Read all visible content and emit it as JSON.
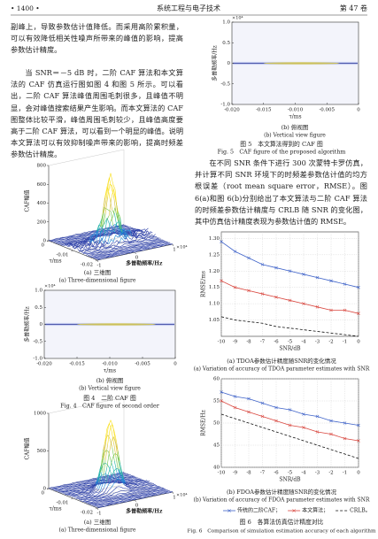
{
  "header": {
    "page": "• 1400 •",
    "journal": "系统工程与电子技术",
    "volume": "第 47 卷"
  },
  "left_text": [
    "副峰上，导致参数估计值降低。而采用高阶累积量，可以有效降低相关性噪声所带来的峰值的影响，提高参数估计精度。",
    "当 SNR＝－5 dB 时，二阶 CAF 算法和本文算法的 CAF 仿真运行图如图 4 和图 5 所示。可以看出，二阶 CAF 算法峰值周围毛刺很多，且峰值不明显，会对峰值搜索结果产生影响。而本文算法的 CAF 图整体比较平滑，峰值周围毛刺较少，且峰值高度要高于二阶 CAF 算法，可以看到一个明显的峰值。说明本文算法可以有效抑制噪声带来的影响，提高时频差参数估计精度。"
  ],
  "right_text": [
    "在不同 SNR 条件下进行 300 次蒙特卡罗仿真，并计算不同 SNR 环境下的时频差参数估计值的均方根误差（root mean square error，RMSE）。图 6(a)和图 6(b)分别给出了本文算法与二阶 CAF 算法的时频差参数估计精度与 CRLB 随 SNR 的变化图，其中仿真估计精度表现为参数估计值的 RMSE。"
  ],
  "fig4": {
    "panel_a": {
      "type": "surface3d",
      "zlabel": "CAF幅值",
      "xlabel": "τ/ms",
      "ylabel": "多普勒频率/Hz",
      "y_multiplier": "×10⁴",
      "zlim": [
        0,
        800
      ],
      "zticks": [
        0,
        200,
        400,
        600,
        800
      ],
      "xlim": [
        -0.02,
        0
      ],
      "xticks": [
        0,
        -0.01,
        -0.02
      ],
      "ylim": [
        -1,
        1
      ],
      "yticks": [
        -1,
        0,
        1
      ],
      "caption_cn": "(a) 三维图",
      "caption_en": "(a) Three-dimensional figure"
    },
    "panel_b": {
      "type": "heatmap",
      "ylabel": "多普勒频率/Hz",
      "xlabel": "τ/ms",
      "y_multiplier": "×10⁴",
      "xlim": [
        -0.02,
        0
      ],
      "xticks": [
        {
          "value": -0.02,
          "label": "-0.020"
        },
        {
          "value": -0.015,
          "label": "-0.015"
        },
        {
          "value": -0.01,
          "label": "-0.010"
        },
        {
          "value": -0.005,
          "label": "-0.005"
        },
        0
      ],
      "ylim": [
        -1,
        1
      ],
      "yticks": [
        {
          "value": 1,
          "label": "1.0"
        },
        0.5,
        0,
        -0.5,
        {
          "value": -1,
          "label": "-1.0"
        }
      ],
      "caption_cn": "(b) 俯视图",
      "caption_en": "(b) Vertical view figure"
    },
    "caption_cn": "图 4　二阶 CAF 图",
    "caption_en": "Fig. 4　CAF figure of second order"
  },
  "fig5": {
    "panel_a": {
      "type": "surface3d",
      "zlabel": "CAF幅值",
      "xlabel": "τ/ms",
      "ylabel": "多普勒频率/Hz",
      "y_multiplier": "×10⁴",
      "zlim": [
        0,
        1000
      ],
      "zticks": [
        0,
        500,
        1000
      ],
      "xlim": [
        -0.02,
        0
      ],
      "xticks": [
        0,
        -0.01,
        -0.02
      ],
      "ylim": [
        -1,
        1
      ],
      "yticks": [
        -1,
        0,
        1
      ],
      "caption_cn": "(a) 三维图",
      "caption_en": "(a) Three-dimensional figure"
    },
    "panel_b": {
      "type": "heatmap",
      "ylabel": "多普勒频率/Hz",
      "xlabel": "τ/ms",
      "y_multiplier": "×10⁴",
      "xlim": [
        -0.02,
        0
      ],
      "xticks": [
        {
          "value": -0.02,
          "label": "-0.020"
        },
        {
          "value": -0.015,
          "label": "-0.015"
        },
        {
          "value": -0.01,
          "label": "-0.010"
        },
        {
          "value": -0.005,
          "label": "-0.005"
        },
        0
      ],
      "ylim": [
        -1,
        1
      ],
      "yticks": [
        {
          "value": 1,
          "label": "1.0"
        },
        0.5,
        0,
        -0.5,
        {
          "value": -1,
          "label": "-1.0"
        }
      ],
      "caption_cn": "(b) 俯视图",
      "caption_en": "(b) Vertical view figure"
    },
    "caption_cn": "图 5　本文算法得到的 CAF 图",
    "caption_en": "Fig. 5　CAF figure of the proposed algorithm"
  },
  "fig6": {
    "series_styles": [
      {
        "name": "传统的二阶CAF；",
        "color": "#3f63c9",
        "marker": "x",
        "line": "solid"
      },
      {
        "name": "本文算法；",
        "color": "#d9473f",
        "marker": "x",
        "line": "solid"
      },
      {
        "name": "CRLB。",
        "color": "#111111",
        "marker": "none",
        "line": "dashed"
      }
    ],
    "panel_a": {
      "type": "line",
      "ylabel": "RMSE/ms",
      "xlabel": "SNR/dB",
      "x": [
        -10,
        -9,
        -8,
        -7,
        -6,
        -5,
        -4,
        -3,
        -2,
        -1,
        0
      ],
      "xlim": [
        -10,
        0
      ],
      "xticks": [
        -10,
        -9,
        -8,
        -7,
        -6,
        -5,
        -4,
        -3,
        -2,
        -1,
        0
      ],
      "ylim": [
        1.0,
        1.32
      ],
      "yticks": [
        {
          "value": 1.05,
          "label": "1.05"
        },
        {
          "value": 1.1,
          "label": "1.10"
        },
        {
          "value": 1.15,
          "label": "1.15"
        },
        {
          "value": 1.2,
          "label": "1.20"
        },
        {
          "value": 1.25,
          "label": "1.25"
        },
        {
          "value": 1.3,
          "label": "1.30"
        }
      ],
      "grid": true,
      "series": [
        {
          "values": [
            1.29,
            1.26,
            1.24,
            1.22,
            1.21,
            1.2,
            1.19,
            1.18,
            1.17,
            1.16,
            1.15
          ]
        },
        {
          "values": [
            1.17,
            1.15,
            1.14,
            1.13,
            1.12,
            1.11,
            1.1,
            1.09,
            1.08,
            1.08,
            1.07
          ]
        },
        {
          "values": [
            1.06,
            1.05,
            1.045,
            1.04,
            1.03,
            1.025,
            1.02,
            1.015,
            1.01,
            1.005,
            1.0
          ]
        }
      ],
      "caption_cn": "(a) TDOA参数估计精度随SNR的变化情况",
      "caption_en": "(a) Variation of accuracy of TDOA parameter estimates with SNR"
    },
    "panel_b": {
      "type": "line",
      "ylabel": "RMSE/Hz",
      "xlabel": "SNR/dB",
      "x": [
        -10,
        -9,
        -8,
        -7,
        -6,
        -5,
        -4,
        -3,
        -2,
        -1,
        0
      ],
      "xlim": [
        -10,
        0
      ],
      "xticks": [
        -10,
        -9,
        -8,
        -7,
        -6,
        -5,
        -4,
        -3,
        -2,
        -1,
        0
      ],
      "ylim": [
        40,
        60
      ],
      "yticks": [
        40,
        45,
        50,
        55,
        60
      ],
      "grid": true,
      "series": [
        {
          "values": [
            57,
            56,
            55.5,
            54.5,
            53.5,
            53,
            52,
            51.5,
            50.5,
            50,
            49.5
          ]
        },
        {
          "values": [
            55,
            53.5,
            52.5,
            51.5,
            50.5,
            49.5,
            49,
            48,
            47.5,
            46.5,
            46
          ]
        },
        {
          "values": [
            52,
            51,
            50,
            49,
            48,
            47,
            46,
            45,
            44,
            43,
            42
          ]
        }
      ],
      "caption_cn": "(b) FDOA参数估计精度随SNR的变化情况",
      "caption_en": "(b) Variation of accuracy of FDOA parameter estimates with SNR"
    },
    "caption_cn": "图 6　各算法仿真估计精度对比",
    "caption_en": "Fig. 6　Comparison of simulation estimation accuracy of each algorithm"
  }
}
